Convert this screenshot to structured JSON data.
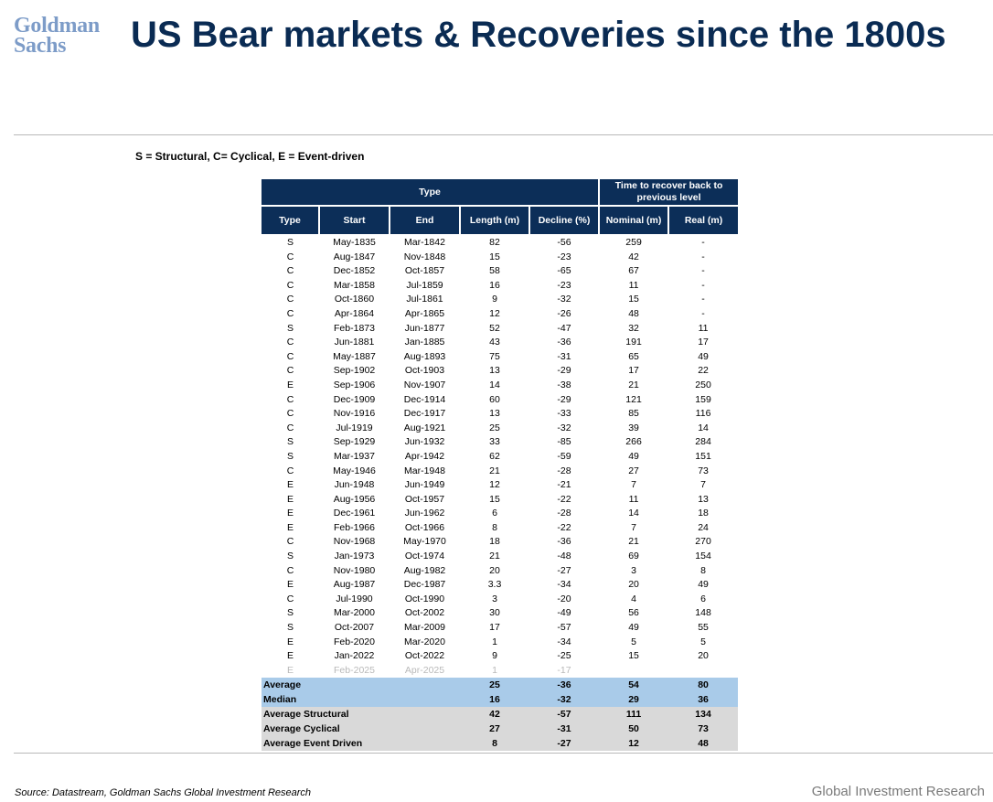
{
  "logo": {
    "line1": "Goldman",
    "line2": "Sachs"
  },
  "title": "US Bear markets & Recoveries since the 1800s",
  "legend": "S = Structural, C= Cyclical, E = Event-driven",
  "table": {
    "group_headers": {
      "type": "Type",
      "recover": "Time to recover back to previous level"
    },
    "columns": [
      "Type",
      "Start",
      "End",
      "Length (m)",
      "Decline (%)",
      "Nominal (m)",
      "Real (m)"
    ],
    "rows": [
      [
        "S",
        "May-1835",
        "Mar-1842",
        "82",
        "-56",
        "259",
        "-"
      ],
      [
        "C",
        "Aug-1847",
        "Nov-1848",
        "15",
        "-23",
        "42",
        "-"
      ],
      [
        "C",
        "Dec-1852",
        "Oct-1857",
        "58",
        "-65",
        "67",
        "-"
      ],
      [
        "C",
        "Mar-1858",
        "Jul-1859",
        "16",
        "-23",
        "11",
        "-"
      ],
      [
        "C",
        "Oct-1860",
        "Jul-1861",
        "9",
        "-32",
        "15",
        "-"
      ],
      [
        "C",
        "Apr-1864",
        "Apr-1865",
        "12",
        "-26",
        "48",
        "-"
      ],
      [
        "S",
        "Feb-1873",
        "Jun-1877",
        "52",
        "-47",
        "32",
        "11"
      ],
      [
        "C",
        "Jun-1881",
        "Jan-1885",
        "43",
        "-36",
        "191",
        "17"
      ],
      [
        "C",
        "May-1887",
        "Aug-1893",
        "75",
        "-31",
        "65",
        "49"
      ],
      [
        "C",
        "Sep-1902",
        "Oct-1903",
        "13",
        "-29",
        "17",
        "22"
      ],
      [
        "E",
        "Sep-1906",
        "Nov-1907",
        "14",
        "-38",
        "21",
        "250"
      ],
      [
        "C",
        "Dec-1909",
        "Dec-1914",
        "60",
        "-29",
        "121",
        "159"
      ],
      [
        "C",
        "Nov-1916",
        "Dec-1917",
        "13",
        "-33",
        "85",
        "116"
      ],
      [
        "C",
        "Jul-1919",
        "Aug-1921",
        "25",
        "-32",
        "39",
        "14"
      ],
      [
        "S",
        "Sep-1929",
        "Jun-1932",
        "33",
        "-85",
        "266",
        "284"
      ],
      [
        "S",
        "Mar-1937",
        "Apr-1942",
        "62",
        "-59",
        "49",
        "151"
      ],
      [
        "C",
        "May-1946",
        "Mar-1948",
        "21",
        "-28",
        "27",
        "73"
      ],
      [
        "E",
        "Jun-1948",
        "Jun-1949",
        "12",
        "-21",
        "7",
        "7"
      ],
      [
        "E",
        "Aug-1956",
        "Oct-1957",
        "15",
        "-22",
        "11",
        "13"
      ],
      [
        "E",
        "Dec-1961",
        "Jun-1962",
        "6",
        "-28",
        "14",
        "18"
      ],
      [
        "E",
        "Feb-1966",
        "Oct-1966",
        "8",
        "-22",
        "7",
        "24"
      ],
      [
        "C",
        "Nov-1968",
        "May-1970",
        "18",
        "-36",
        "21",
        "270"
      ],
      [
        "S",
        "Jan-1973",
        "Oct-1974",
        "21",
        "-48",
        "69",
        "154"
      ],
      [
        "C",
        "Nov-1980",
        "Aug-1982",
        "20",
        "-27",
        "3",
        "8"
      ],
      [
        "E",
        "Aug-1987",
        "Dec-1987",
        "3.3",
        "-34",
        "20",
        "49"
      ],
      [
        "C",
        "Jul-1990",
        "Oct-1990",
        "3",
        "-20",
        "4",
        "6"
      ],
      [
        "S",
        "Mar-2000",
        "Oct-2002",
        "30",
        "-49",
        "56",
        "148"
      ],
      [
        "S",
        "Oct-2007",
        "Mar-2009",
        "17",
        "-57",
        "49",
        "55"
      ],
      [
        "E",
        "Feb-2020",
        "Mar-2020",
        "1",
        "-34",
        "5",
        "5"
      ],
      [
        "E",
        "Jan-2022",
        "Oct-2022",
        "9",
        "-25",
        "15",
        "20"
      ]
    ],
    "faded_row": [
      "E",
      "Feb-2025",
      "Apr-2025",
      "1",
      "-17",
      "",
      ""
    ],
    "summary_blue": [
      [
        "Average",
        "25",
        "-36",
        "54",
        "80"
      ],
      [
        "Median",
        "16",
        "-32",
        "29",
        "36"
      ]
    ],
    "summary_grey": [
      [
        "Average Structural",
        "42",
        "-57",
        "111",
        "134"
      ],
      [
        "Average Cyclical",
        "27",
        "-31",
        "50",
        "73"
      ],
      [
        "Average Event Driven",
        "8",
        "-27",
        "12",
        "48"
      ]
    ]
  },
  "source": "Source: Datastream, Goldman Sachs Global Investment Research",
  "footer_brand": "Global Investment Research",
  "colors": {
    "header_navy": "#0c2e58",
    "title_navy": "#0a2b53",
    "logo_blue": "#7d9cc8",
    "summary_blue": "#a9cbe9",
    "summary_grey": "#d9d9d9"
  }
}
